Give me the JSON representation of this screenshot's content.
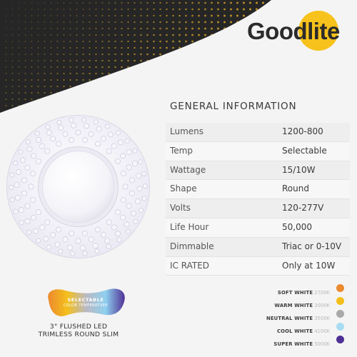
{
  "brand": {
    "name": "Goodlite",
    "sun_color": "#f7c21b"
  },
  "section_title": "GENERAL INFORMATION",
  "specs": [
    {
      "label": "Lumens",
      "value": "1200-800"
    },
    {
      "label": "Temp",
      "value": "Selectable"
    },
    {
      "label": "Wattage",
      "value": "15/10W"
    },
    {
      "label": "Shape",
      "value": "Round"
    },
    {
      "label": "Volts",
      "value": "120-277V"
    },
    {
      "label": "Life Hour",
      "value": "50,000"
    },
    {
      "label": "Dimmable",
      "value": "Triac or 0-10V"
    },
    {
      "label": "IC RATED",
      "value": "Only at 10W"
    }
  ],
  "color_temps": [
    {
      "name": "SOFT WHITE",
      "kelvin": "2700K",
      "color": "#ec8a2e"
    },
    {
      "name": "WARM WHITE",
      "kelvin": "3000K",
      "color": "#f4bf1c"
    },
    {
      "name": "NEUTRAL WHITE",
      "kelvin": "3500K",
      "color": "#a9a9a9"
    },
    {
      "name": "COOL WHITE",
      "kelvin": "4100K",
      "color": "#a8dcf2"
    },
    {
      "name": "SUPER WHITE",
      "kelvin": "5000K",
      "color": "#4e3095"
    }
  ],
  "badge": {
    "line1": "SELECTABLE",
    "line2": "COLOR TEMPERATURE"
  },
  "caption": {
    "line1": "3\" FLUSHED LED",
    "line2": "TRIMLESS ROUND SLIM"
  },
  "theme": {
    "corner_bg": "#262626",
    "corner_dot": "#f2b72a"
  }
}
